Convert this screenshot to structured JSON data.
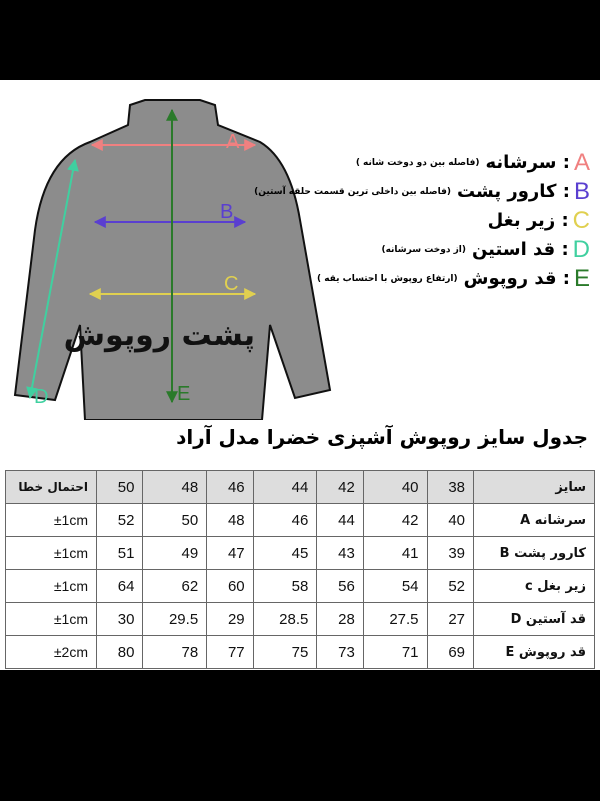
{
  "figure": {
    "back_label": "پشت روپوش",
    "markers": [
      "A",
      "B",
      "C",
      "D",
      "E"
    ],
    "colors": {
      "A": "#f08080",
      "B": "#5a3fd0",
      "C": "#e0d050",
      "D": "#40d0a0",
      "E": "#2a7a2a",
      "jacket": "#8c8c8c"
    }
  },
  "legend": [
    {
      "letter": "A",
      "name": "سرشانه",
      "note": "(فاصله بین دو دوخت شانه )"
    },
    {
      "letter": "B",
      "name": "کارور پشت",
      "note": "(فاصله بین داخلی ترین قسمت حلقه آستین)"
    },
    {
      "letter": "C",
      "name": "زیر بغل",
      "note": ""
    },
    {
      "letter": "D",
      "name": "قد استین",
      "note": "(از دوخت سرشانه)"
    },
    {
      "letter": "E",
      "name": "قد روپوش",
      "note": "(ارتفاع روپوش با احتساب یقه )"
    }
  ],
  "table": {
    "title": "جدول سایز روپوش آشپزی خضرا مدل آراد",
    "header_label": "سایز",
    "sizes": [
      "38",
      "40",
      "42",
      "44",
      "46",
      "48",
      "50"
    ],
    "tolerance_header": "احتمال خطا",
    "rows": [
      {
        "label": "سرشانه   A",
        "values": [
          "40",
          "42",
          "44",
          "46",
          "48",
          "50",
          "52"
        ],
        "tolerance": "±1cm"
      },
      {
        "label": "کارور پشت B",
        "values": [
          "39",
          "41",
          "43",
          "45",
          "47",
          "49",
          "51"
        ],
        "tolerance": "±1cm"
      },
      {
        "label": "زیر بغل c",
        "values": [
          "52",
          "54",
          "56",
          "58",
          "60",
          "62",
          "64"
        ],
        "tolerance": "±1cm"
      },
      {
        "label": "قد آستین  D",
        "values": [
          "27",
          "27.5",
          "28",
          "28.5",
          "29",
          "29.5",
          "30"
        ],
        "tolerance": "±1cm"
      },
      {
        "label": "قد روپوش E",
        "values": [
          "69",
          "71",
          "73",
          "75",
          "77",
          "78",
          "80"
        ],
        "tolerance": "±2cm"
      }
    ]
  }
}
